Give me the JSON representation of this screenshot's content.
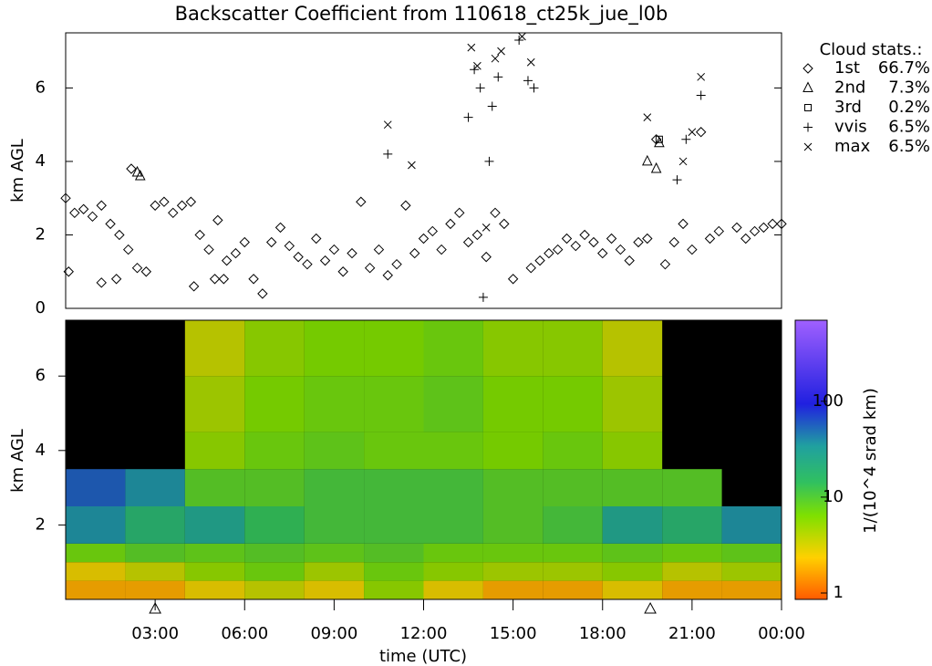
{
  "chart_data": [
    {
      "type": "scatter",
      "title": "Backscatter Coefficient from 110618_ct25k_jue_l0b",
      "y_label": "km AGL",
      "xlim": [
        0,
        24
      ],
      "ylim": [
        0,
        7.5
      ],
      "yticks": [
        0,
        2,
        4,
        6
      ],
      "legend_title": "Cloud stats.:",
      "legend_position": "right",
      "series": [
        {
          "name": "1st",
          "marker": "diamond",
          "color": "#000000",
          "percent": 66.7,
          "percent_label": "66.7%",
          "x": [
            0.0,
            0.3,
            0.6,
            0.9,
            1.2,
            1.5,
            1.8,
            2.1,
            2.4,
            2.7,
            3.0,
            3.3,
            3.6,
            3.9,
            4.2,
            4.5,
            4.8,
            5.1,
            5.4,
            5.7,
            6.0,
            6.3,
            6.6,
            6.9,
            7.2,
            7.5,
            7.8,
            8.1,
            8.4,
            8.7,
            9.0,
            9.3,
            9.6,
            9.9,
            10.2,
            10.5,
            10.8,
            11.1,
            11.4,
            11.7,
            12.0,
            12.3,
            12.6,
            12.9,
            13.2,
            13.5,
            13.8,
            14.1,
            14.4,
            14.7,
            15.0,
            15.6,
            15.9,
            16.2,
            16.5,
            16.8,
            17.1,
            17.4,
            17.7,
            18.0,
            18.3,
            18.6,
            18.9,
            19.2,
            19.5,
            19.8,
            20.1,
            20.4,
            20.7,
            21.0,
            21.3,
            21.6,
            21.9,
            22.5,
            22.8,
            23.1,
            23.4,
            23.7,
            24.0,
            0.1,
            1.2,
            1.7,
            2.2,
            4.3,
            5.0,
            5.3
          ],
          "y": [
            3.0,
            2.6,
            2.7,
            2.5,
            2.8,
            2.3,
            2.0,
            1.6,
            1.1,
            1.0,
            2.8,
            2.9,
            2.6,
            2.8,
            2.9,
            2.0,
            1.6,
            2.4,
            1.3,
            1.5,
            1.8,
            0.8,
            0.4,
            1.8,
            2.2,
            1.7,
            1.4,
            1.2,
            1.9,
            1.3,
            1.6,
            1.0,
            1.5,
            2.9,
            1.1,
            1.6,
            0.9,
            1.2,
            2.8,
            1.5,
            1.9,
            2.1,
            1.6,
            2.3,
            2.6,
            1.8,
            2.0,
            1.4,
            2.6,
            2.3,
            0.8,
            1.1,
            1.3,
            1.5,
            1.6,
            1.9,
            1.7,
            2.0,
            1.8,
            1.5,
            1.9,
            1.6,
            1.3,
            1.8,
            1.9,
            4.6,
            1.2,
            1.8,
            2.3,
            1.6,
            4.8,
            1.9,
            2.1,
            2.2,
            1.9,
            2.1,
            2.2,
            2.3,
            2.3,
            1.0,
            0.7,
            0.8,
            3.8,
            0.6,
            0.8,
            0.8
          ]
        },
        {
          "name": "2nd",
          "marker": "triangle",
          "color": "#000000",
          "percent": 7.3,
          "percent_label": "7.3%",
          "x": [
            2.4,
            2.5,
            19.5,
            19.8,
            19.9
          ],
          "y": [
            3.7,
            3.6,
            4.0,
            3.8,
            4.5
          ]
        },
        {
          "name": "3rd",
          "marker": "square",
          "color": "#000000",
          "percent": 0.2,
          "percent_label": "0.2%",
          "x": [
            19.9
          ],
          "y": [
            4.6
          ]
        },
        {
          "name": "vvis",
          "marker": "plus",
          "color": "#000000",
          "percent": 6.5,
          "percent_label": "6.5%",
          "x": [
            10.8,
            13.5,
            13.7,
            13.9,
            14.0,
            14.2,
            14.3,
            14.5,
            15.2,
            15.5,
            15.7,
            20.5,
            20.8,
            21.3
          ],
          "y": [
            4.2,
            5.2,
            6.5,
            6.0,
            0.3,
            4.0,
            5.5,
            6.3,
            7.3,
            6.2,
            6.0,
            3.5,
            4.6,
            5.8
          ]
        },
        {
          "name": "max",
          "marker": "cross",
          "color": "#000000",
          "percent": 6.5,
          "percent_label": "6.5%",
          "x": [
            10.8,
            11.6,
            13.6,
            13.8,
            14.1,
            14.4,
            14.6,
            15.3,
            15.6,
            19.5,
            20.7,
            21.0,
            21.3
          ],
          "y": [
            5.0,
            3.9,
            7.1,
            6.6,
            2.2,
            6.8,
            7.0,
            7.4,
            6.7,
            5.2,
            4.0,
            4.8,
            6.3
          ]
        }
      ]
    },
    {
      "type": "heatmap",
      "y_label": "km AGL",
      "x_label": "time (UTC)",
      "colorbar_label": "1/(10^4 srad km)",
      "log_color_scale": true,
      "xlim": [
        0,
        24
      ],
      "ylim": [
        0,
        7.5
      ],
      "yticks": [
        2,
        4,
        6
      ],
      "xticks": [
        {
          "value": 3,
          "label": "03:00"
        },
        {
          "value": 6,
          "label": "06:00"
        },
        {
          "value": 9,
          "label": "09:00"
        },
        {
          "value": 12,
          "label": "12:00"
        },
        {
          "value": 15,
          "label": "15:00"
        },
        {
          "value": 18,
          "label": "18:00"
        },
        {
          "value": 21,
          "label": "21:00"
        },
        {
          "value": 24,
          "label": "00:00"
        }
      ],
      "triangle_markers_x": [
        3.0,
        19.6
      ],
      "clim": [
        1,
        700
      ],
      "cticks": [
        1,
        10,
        100
      ],
      "x_bins": [
        0,
        2,
        4,
        6,
        8,
        10,
        12,
        14,
        16,
        18,
        20,
        22,
        24
      ],
      "y_bins": [
        0,
        0.5,
        1,
        1.5,
        2.5,
        3.5,
        4.5,
        6,
        7.5
      ],
      "z": [
        [
          2,
          2,
          3,
          4,
          3,
          6,
          3,
          2,
          2,
          3,
          2,
          2
        ],
        [
          3,
          4,
          6,
          8,
          5,
          8,
          6,
          5,
          5,
          6,
          4,
          5
        ],
        [
          8,
          10,
          9,
          10,
          9,
          10,
          8,
          8,
          8,
          9,
          8,
          9
        ],
        [
          40,
          20,
          30,
          15,
          12,
          12,
          12,
          10,
          12,
          30,
          20,
          40
        ],
        [
          60,
          40,
          10,
          10,
          12,
          12,
          12,
          10,
          10,
          10,
          10,
          null
        ],
        [
          null,
          null,
          6,
          8,
          9,
          8,
          8,
          7,
          8,
          6,
          null,
          null
        ],
        [
          null,
          null,
          5,
          7,
          8,
          8,
          9,
          7,
          7,
          5,
          null,
          null
        ],
        [
          null,
          null,
          4,
          6,
          7,
          7,
          8,
          6,
          6,
          4,
          null,
          null
        ]
      ]
    }
  ]
}
